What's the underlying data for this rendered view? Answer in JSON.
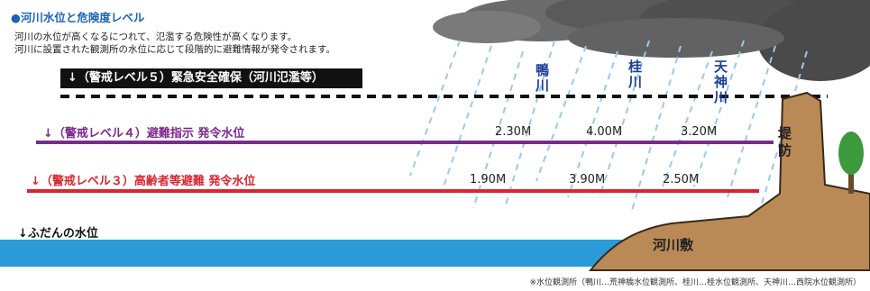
{
  "title": "●河川水位と危険度レベル",
  "description_lines": [
    "河川の水位が高くなるにつれて、氾濫する危険性が高くなります。",
    "河川に設置された観測所の水位に応じて段階的に避難情報が発令されます。"
  ],
  "levels": {
    "level5": "↓（警戒レベル５）緊急安全確保（河川氾濫等）",
    "level4": "↓（警戒レベル４）避難指示 発令水位",
    "level3": "↓（警戒レベル３）高齢者等避難 発令水位",
    "normal": "↓ふだんの水位"
  },
  "rivers": [
    {
      "name": "鴨川",
      "level4": "2.30M",
      "level3": "1.90M"
    },
    {
      "name": "桂川",
      "level4": "4.00M",
      "level3": "3.90M"
    },
    {
      "name": "天神川",
      "level4": "3.20M",
      "level3": "2.50M"
    }
  ],
  "labels": {
    "dike": "堤防",
    "riverbed": "河川敷"
  },
  "footnote": "※水位観測所（鴨川…荒神橋水位観測所、桂川…桂水位観測所、天神川…西院水位観測所）",
  "colors": {
    "title": "#1a63b5",
    "level4": "#7a2a8c",
    "level3": "#d9252f",
    "water": "#2a9bd6",
    "ground": "#b98a55",
    "rain": "#8fc3ea",
    "cloud": "#555555",
    "tree": "#3c9a3c"
  }
}
